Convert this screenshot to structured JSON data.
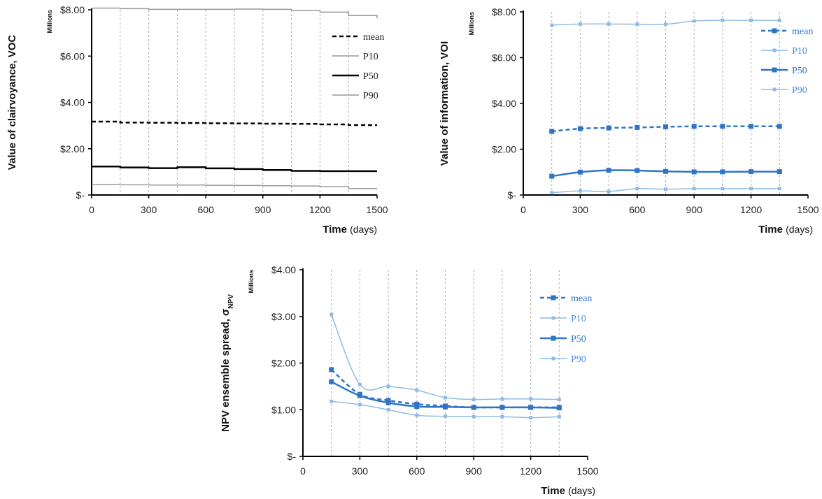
{
  "chart_data": [
    {
      "id": "voc",
      "type": "line",
      "step": true,
      "xlabel": "Time",
      "xunit": "(days)",
      "ylabel": "Value of clairvoyance, VOC",
      "units_label": "Millions",
      "xlim": [
        0,
        1500
      ],
      "ylim": [
        0,
        8
      ],
      "xticks": [
        0,
        300,
        600,
        900,
        1200,
        1500
      ],
      "yticks": [
        0,
        2,
        4,
        6,
        8
      ],
      "ytick_labels": [
        "$-",
        "$2.00",
        "$4.00",
        "$6.00",
        "$8.00"
      ],
      "grid_x": [
        150,
        300,
        450,
        600,
        750,
        900,
        1050,
        1200,
        1350
      ],
      "legend_position": "top-right",
      "series": [
        {
          "name": "mean",
          "color": "#000000",
          "style": "dashed",
          "width": 2.5,
          "x": [
            0,
            150,
            300,
            450,
            600,
            750,
            900,
            1050,
            1200,
            1350,
            1500
          ],
          "y": [
            3.17,
            3.13,
            3.12,
            3.11,
            3.1,
            3.09,
            3.08,
            3.07,
            3.05,
            3.02,
            3.02
          ]
        },
        {
          "name": "P10",
          "color": "#999999",
          "style": "solid",
          "width": 1.5,
          "x": [
            0,
            150,
            300,
            450,
            600,
            750,
            900,
            1050,
            1200,
            1350,
            1500
          ],
          "y": [
            0.45,
            0.44,
            0.43,
            0.43,
            0.42,
            0.41,
            0.4,
            0.39,
            0.36,
            0.28,
            0.28
          ]
        },
        {
          "name": "P50",
          "color": "#000000",
          "style": "solid",
          "width": 2.5,
          "x": [
            0,
            150,
            300,
            450,
            600,
            750,
            900,
            1050,
            1200,
            1350,
            1500
          ],
          "y": [
            1.23,
            1.19,
            1.16,
            1.2,
            1.15,
            1.12,
            1.08,
            1.04,
            1.03,
            1.03,
            1.03
          ]
        },
        {
          "name": "P90",
          "color": "#999999",
          "style": "solid",
          "width": 1.5,
          "x": [
            0,
            150,
            300,
            450,
            600,
            750,
            900,
            1050,
            1200,
            1350,
            1500
          ],
          "y": [
            8.07,
            8.05,
            8.02,
            8.02,
            8.02,
            8.03,
            8.02,
            7.97,
            7.9,
            7.75,
            7.63
          ]
        }
      ]
    },
    {
      "id": "voi",
      "type": "line",
      "step": false,
      "xlabel": "Time",
      "xunit": "(days)",
      "ylabel": "Value of information, VOI",
      "units_label": "Millions",
      "xlim": [
        0,
        1500
      ],
      "ylim": [
        0,
        8
      ],
      "xticks": [
        0,
        300,
        600,
        900,
        1200,
        1500
      ],
      "yticks": [
        0,
        2,
        4,
        6,
        8
      ],
      "ytick_labels": [
        "$-",
        "$2.00",
        "$4.00",
        "$6.00",
        "$8.00"
      ],
      "grid_x": [
        150,
        300,
        450,
        600,
        750,
        900,
        1050,
        1200,
        1350
      ],
      "legend_position": "top-right",
      "series": [
        {
          "name": "mean",
          "color": "#2e75c6",
          "style": "dashed",
          "width": 2.5,
          "marker": 7,
          "x": [
            150,
            300,
            450,
            600,
            750,
            900,
            1050,
            1200,
            1350
          ],
          "y": [
            2.78,
            2.9,
            2.93,
            2.95,
            2.98,
            3.0,
            3.0,
            3.0,
            3.0
          ]
        },
        {
          "name": "P10",
          "color": "#8fbbe6",
          "style": "solid",
          "width": 1.5,
          "marker": 5,
          "x": [
            150,
            300,
            450,
            600,
            750,
            900,
            1050,
            1200,
            1350
          ],
          "y": [
            0.1,
            0.18,
            0.15,
            0.28,
            0.25,
            0.28,
            0.28,
            0.28,
            0.28
          ]
        },
        {
          "name": "P50",
          "color": "#2e75c6",
          "style": "solid",
          "width": 2.5,
          "marker": 7,
          "x": [
            150,
            300,
            450,
            600,
            750,
            900,
            1050,
            1200,
            1350
          ],
          "y": [
            0.82,
            1.0,
            1.08,
            1.07,
            1.03,
            1.01,
            1.01,
            1.02,
            1.02
          ]
        },
        {
          "name": "P90",
          "color": "#8fbbe6",
          "style": "solid",
          "width": 1.5,
          "marker": 5,
          "x": [
            150,
            300,
            450,
            600,
            750,
            900,
            1050,
            1200,
            1350
          ],
          "y": [
            7.42,
            7.47,
            7.47,
            7.46,
            7.46,
            7.6,
            7.63,
            7.63,
            7.63
          ]
        }
      ]
    },
    {
      "id": "npv",
      "type": "line",
      "step": false,
      "xlabel": "Time",
      "xunit": "(days)",
      "ylabel": "NPV ensemble spread, σ",
      "ylabel_sub": "NPV",
      "units_label": "Millions",
      "xlim": [
        0,
        1500
      ],
      "ylim": [
        0,
        4
      ],
      "xticks": [
        0,
        300,
        600,
        900,
        1200,
        1500
      ],
      "yticks": [
        0,
        1,
        2,
        3,
        4
      ],
      "ytick_labels": [
        "$-",
        "$1.00",
        "$2.00",
        "$3.00",
        "$4.00"
      ],
      "grid_x": [
        150,
        300,
        450,
        600,
        750,
        900,
        1050,
        1200,
        1350
      ],
      "legend_position": "top-right",
      "series": [
        {
          "name": "mean",
          "color": "#2e75c6",
          "style": "dashed",
          "width": 2.5,
          "marker": 7,
          "x": [
            150,
            300,
            450,
            600,
            750,
            900,
            1050,
            1200,
            1350
          ],
          "y": [
            1.86,
            1.33,
            1.2,
            1.12,
            1.08,
            1.05,
            1.05,
            1.05,
            1.05
          ]
        },
        {
          "name": "P10",
          "color": "#8fbbe6",
          "style": "solid",
          "width": 1.5,
          "marker": 5,
          "x": [
            150,
            300,
            450,
            600,
            750,
            900,
            1050,
            1200,
            1350
          ],
          "y": [
            1.18,
            1.11,
            1.0,
            0.88,
            0.86,
            0.85,
            0.85,
            0.83,
            0.85
          ]
        },
        {
          "name": "P50",
          "color": "#2e75c6",
          "style": "solid",
          "width": 2.5,
          "marker": 7,
          "x": [
            150,
            300,
            450,
            600,
            750,
            900,
            1050,
            1200,
            1350
          ],
          "y": [
            1.6,
            1.3,
            1.15,
            1.07,
            1.06,
            1.05,
            1.05,
            1.05,
            1.04
          ]
        },
        {
          "name": "P90",
          "color": "#8fbbe6",
          "style": "solid",
          "width": 1.5,
          "marker": 5,
          "x": [
            150,
            300,
            450,
            600,
            750,
            900,
            1050,
            1200,
            1350
          ],
          "y": [
            3.04,
            1.54,
            1.5,
            1.42,
            1.26,
            1.22,
            1.23,
            1.23,
            1.22
          ]
        }
      ]
    }
  ]
}
